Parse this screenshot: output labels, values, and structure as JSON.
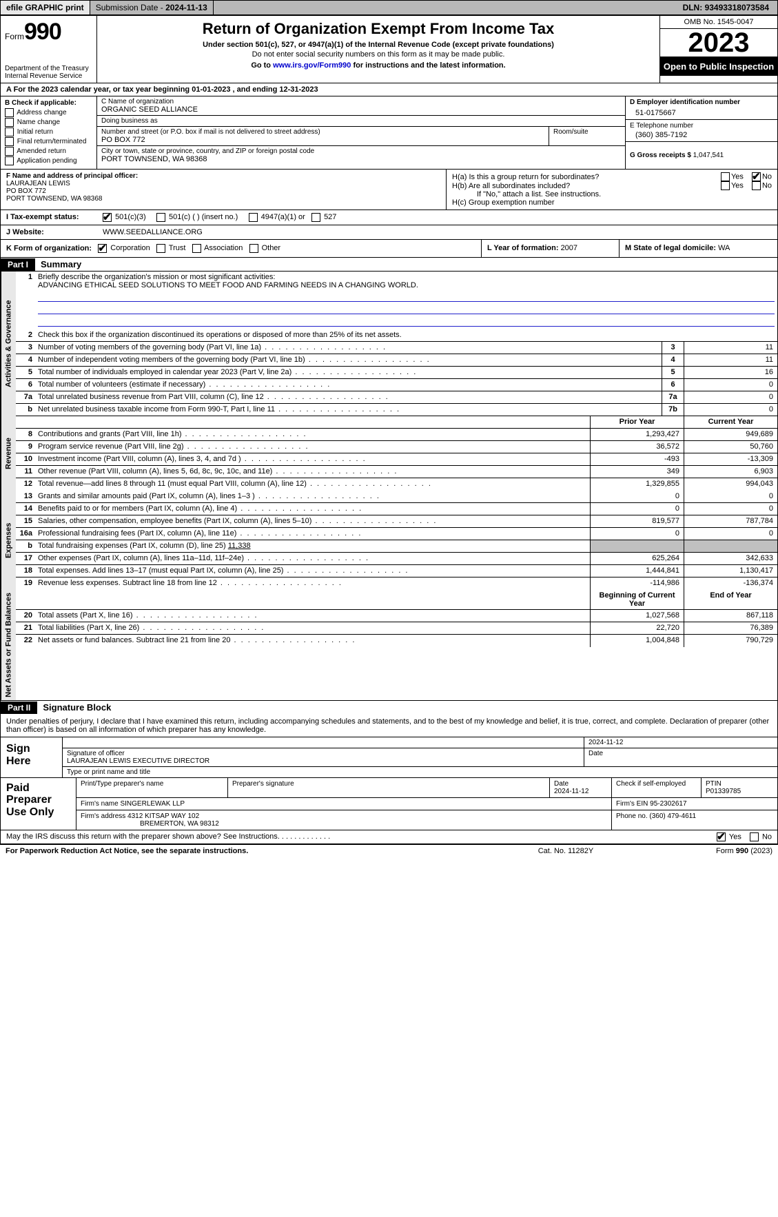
{
  "topbar": {
    "efile": "efile GRAPHIC print",
    "submission_label": "Submission Date - ",
    "submission_date": "2024-11-13",
    "dln_label": "DLN: ",
    "dln": "93493318073584"
  },
  "header": {
    "form_word": "Form",
    "form_num": "990",
    "dept": "Department of the Treasury\nInternal Revenue Service",
    "title": "Return of Organization Exempt From Income Tax",
    "sub": "Under section 501(c), 527, or 4947(a)(1) of the Internal Revenue Code (except private foundations)",
    "ssn": "Do not enter social security numbers on this form as it may be made public.",
    "goto1": "Go to ",
    "goto_link": "www.irs.gov/Form990",
    "goto2": " for instructions and the latest information.",
    "omb": "OMB No. 1545-0047",
    "year": "2023",
    "inspection": "Open to Public Inspection"
  },
  "row_a": {
    "prefix": "A For the 2023 calendar year, or tax year beginning ",
    "begin": "01-01-2023",
    "mid": " , and ending ",
    "end": "12-31-2023"
  },
  "col_b": {
    "label": "B Check if applicable:",
    "addr_change": "Address change",
    "name_change": "Name change",
    "initial": "Initial return",
    "final": "Final return/terminated",
    "amended": "Amended return",
    "app_pending": "Application pending"
  },
  "col_c": {
    "name_lbl": "C Name of organization",
    "name": "ORGANIC SEED ALLIANCE",
    "dba_lbl": "Doing business as",
    "dba": "",
    "street_lbl": "Number and street (or P.O. box if mail is not delivered to street address)",
    "street": "PO BOX 772",
    "room_lbl": "Room/suite",
    "room": "",
    "city_lbl": "City or town, state or province, country, and ZIP or foreign postal code",
    "city": "PORT TOWNSEND, WA  98368"
  },
  "col_d": {
    "ein_lbl": "D Employer identification number",
    "ein": "51-0175667",
    "tel_lbl": "E Telephone number",
    "tel": "(360) 385-7192",
    "gross_lbl": "G Gross receipts $ ",
    "gross": "1,047,541"
  },
  "row_f": {
    "lbl": "F  Name and address of principal officer:",
    "name": "LAURAJEAN LEWIS",
    "addr1": "PO BOX 772",
    "addr2": "PORT TOWNSEND, WA  98368"
  },
  "row_h": {
    "ha": "H(a)  Is this a group return for subordinates?",
    "hb": "H(b)  Are all subordinates included?",
    "hb_note": "If \"No,\" attach a list. See instructions.",
    "hc": "H(c)  Group exemption number ",
    "yes": "Yes",
    "no": "No"
  },
  "row_i": {
    "lbl": "I    Tax-exempt status:",
    "c3": "501(c)(3)",
    "c": "501(c) (  ) (insert no.)",
    "a1": "4947(a)(1) or",
    "527": "527"
  },
  "row_j": {
    "lbl": "J    Website: ",
    "val": "WWW.SEEDALLIANCE.ORG"
  },
  "row_k": {
    "lbl": "K Form of organization:",
    "corp": "Corporation",
    "trust": "Trust",
    "assoc": "Association",
    "other": "Other",
    "l_lbl": "L Year of formation: ",
    "l_val": "2007",
    "m_lbl": "M State of legal domicile: ",
    "m_val": "WA"
  },
  "part1": {
    "hdr": "Part I",
    "title": "Summary",
    "vtab1": "Activities & Governance",
    "vtab2": "Revenue",
    "vtab3": "Expenses",
    "vtab4": "Net Assets or Fund Balances",
    "l1_lbl": "Briefly describe the organization's mission or most significant activities:",
    "l1_val": "ADVANCING ETHICAL SEED SOLUTIONS TO MEET FOOD AND FARMING NEEDS IN A CHANGING WORLD.",
    "l2": "Check this box         if the organization discontinued its operations or disposed of more than 25% of its net assets.",
    "lines_gov": [
      {
        "n": "3",
        "t": "Number of voting members of the governing body (Part VI, line 1a)",
        "b": "3",
        "v": "11"
      },
      {
        "n": "4",
        "t": "Number of independent voting members of the governing body (Part VI, line 1b)",
        "b": "4",
        "v": "11"
      },
      {
        "n": "5",
        "t": "Total number of individuals employed in calendar year 2023 (Part V, line 2a)",
        "b": "5",
        "v": "16"
      },
      {
        "n": "6",
        "t": "Total number of volunteers (estimate if necessary)",
        "b": "6",
        "v": "0"
      },
      {
        "n": "7a",
        "t": "Total unrelated business revenue from Part VIII, column (C), line 12",
        "b": "7a",
        "v": "0"
      },
      {
        "n": "b",
        "t": "Net unrelated business taxable income from Form 990-T, Part I, line 11",
        "b": "7b",
        "v": "0"
      }
    ],
    "col_prior": "Prior Year",
    "col_current": "Current Year",
    "lines_rev": [
      {
        "n": "8",
        "t": "Contributions and grants (Part VIII, line 1h)",
        "p": "1,293,427",
        "c": "949,689"
      },
      {
        "n": "9",
        "t": "Program service revenue (Part VIII, line 2g)",
        "p": "36,572",
        "c": "50,760"
      },
      {
        "n": "10",
        "t": "Investment income (Part VIII, column (A), lines 3, 4, and 7d )",
        "p": "-493",
        "c": "-13,309"
      },
      {
        "n": "11",
        "t": "Other revenue (Part VIII, column (A), lines 5, 6d, 8c, 9c, 10c, and 11e)",
        "p": "349",
        "c": "6,903"
      },
      {
        "n": "12",
        "t": "Total revenue—add lines 8 through 11 (must equal Part VIII, column (A), line 12)",
        "p": "1,329,855",
        "c": "994,043"
      }
    ],
    "lines_exp": [
      {
        "n": "13",
        "t": "Grants and similar amounts paid (Part IX, column (A), lines 1–3 )",
        "p": "0",
        "c": "0"
      },
      {
        "n": "14",
        "t": "Benefits paid to or for members (Part IX, column (A), line 4)",
        "p": "0",
        "c": "0"
      },
      {
        "n": "15",
        "t": "Salaries, other compensation, employee benefits (Part IX, column (A), lines 5–10)",
        "p": "819,577",
        "c": "787,784"
      },
      {
        "n": "16a",
        "t": "Professional fundraising fees (Part IX, column (A), line 11e)",
        "p": "0",
        "c": "0"
      }
    ],
    "l16b": "Total fundraising expenses (Part IX, column (D), line 25) ",
    "l16b_val": "11,338",
    "lines_exp2": [
      {
        "n": "17",
        "t": "Other expenses (Part IX, column (A), lines 11a–11d, 11f–24e)",
        "p": "625,264",
        "c": "342,633"
      },
      {
        "n": "18",
        "t": "Total expenses. Add lines 13–17 (must equal Part IX, column (A), line 25)",
        "p": "1,444,841",
        "c": "1,130,417"
      },
      {
        "n": "19",
        "t": "Revenue less expenses. Subtract line 18 from line 12",
        "p": "-114,986",
        "c": "-136,374"
      }
    ],
    "col_begin": "Beginning of Current Year",
    "col_end": "End of Year",
    "lines_net": [
      {
        "n": "20",
        "t": "Total assets (Part X, line 16)",
        "p": "1,027,568",
        "c": "867,118"
      },
      {
        "n": "21",
        "t": "Total liabilities (Part X, line 26)",
        "p": "22,720",
        "c": "76,389"
      },
      {
        "n": "22",
        "t": "Net assets or fund balances. Subtract line 21 from line 20",
        "p": "1,004,848",
        "c": "790,729"
      }
    ]
  },
  "part2": {
    "hdr": "Part II",
    "title": "Signature Block",
    "decl": "Under penalties of perjury, I declare that I have examined this return, including accompanying schedules and statements, and to the best of my knowledge and belief, it is true, correct, and complete. Declaration of preparer (other than officer) is based on all information of which preparer has any knowledge.",
    "sign_here": "Sign Here",
    "sig_officer": "Signature of officer",
    "sig_date": "2024-11-12",
    "date_lbl": "Date",
    "officer_name": "LAURAJEAN LEWIS  EXECUTIVE DIRECTOR",
    "type_lbl": "Type or print name and title",
    "paid_lbl": "Paid Preparer Use Only",
    "prep_name_lbl": "Print/Type preparer's name",
    "prep_name": "",
    "prep_sig_lbl": "Preparer's signature",
    "prep_date_lbl": "Date",
    "prep_date": "2024-11-12",
    "self_emp": "Check         if self-employed",
    "ptin_lbl": "PTIN",
    "ptin": "P01339785",
    "firm_name_lbl": "Firm's name   ",
    "firm_name": "SINGERLEWAK LLP",
    "firm_ein_lbl": "Firm's EIN  ",
    "firm_ein": "95-2302617",
    "firm_addr_lbl": "Firm's address ",
    "firm_addr1": "4312 KITSAP WAY 102",
    "firm_addr2": "BREMERTON, WA  98312",
    "phone_lbl": "Phone no. ",
    "phone": "(360) 479-4611",
    "may": "May the IRS discuss this return with the preparer shown above? See Instructions.",
    "yes": "Yes",
    "no": "No"
  },
  "footer": {
    "pra": "For Paperwork Reduction Act Notice, see the separate instructions.",
    "cat": "Cat. No. 11282Y",
    "form": "Form 990 (2023)"
  },
  "colors": {
    "bg": "#ffffff",
    "topbar_bg": "#b8b8b8",
    "btn_bg": "#e8e8e8",
    "black": "#000000",
    "link": "#0000cc",
    "vtab_bg": "#e8e8e8",
    "grey_cell": "#c0c0c0",
    "line_blue": "#2020cc"
  }
}
